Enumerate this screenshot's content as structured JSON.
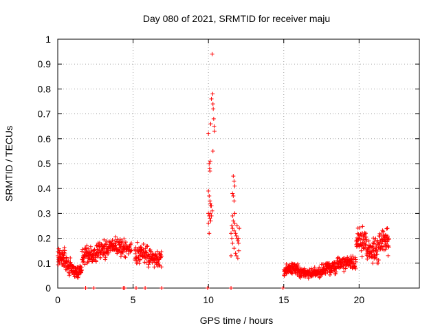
{
  "chart_data": {
    "type": "scatter",
    "title": "Day 080 of 2021, SRMTID for receiver maju",
    "xlabel": "GPS time / hours",
    "ylabel": "SRMTID / TECUs",
    "xlim": [
      0,
      24
    ],
    "ylim": [
      0,
      1
    ],
    "x_ticks": [
      0,
      5,
      10,
      15,
      20
    ],
    "x_tick_labels": [
      "0",
      "5",
      "10",
      "15",
      "20"
    ],
    "y_ticks": [
      0,
      0.1,
      0.2,
      0.3,
      0.4,
      0.5,
      0.6,
      0.7,
      0.8,
      0.9,
      1
    ],
    "y_tick_labels": [
      "0",
      "0.1",
      "0.2",
      "0.3",
      "0.4",
      "0.5",
      "0.6",
      "0.7",
      "0.8",
      "0.9",
      "1"
    ],
    "grid": true,
    "marker": "+",
    "series_color": "#ff0000",
    "seed": 80,
    "segments": [
      {
        "x0": 0.0,
        "x1": 0.5,
        "base": 0.12,
        "spread": 0.035,
        "n": 45
      },
      {
        "x0": 0.5,
        "x1": 1.0,
        "base": 0.09,
        "spread": 0.03,
        "n": 40
      },
      {
        "x0": 1.0,
        "x1": 1.6,
        "base": 0.07,
        "spread": 0.025,
        "n": 45
      },
      {
        "x0": 1.6,
        "x1": 2.4,
        "base": 0.13,
        "spread": 0.035,
        "n": 55
      },
      {
        "x0": 2.4,
        "x1": 3.4,
        "base": 0.15,
        "spread": 0.04,
        "n": 70
      },
      {
        "x0": 3.4,
        "x1": 4.4,
        "base": 0.17,
        "spread": 0.035,
        "n": 70
      },
      {
        "x0": 4.4,
        "x1": 4.9,
        "base": 0.16,
        "spread": 0.03,
        "n": 30
      },
      {
        "x0": 5.1,
        "x1": 6.0,
        "base": 0.13,
        "spread": 0.035,
        "n": 60
      },
      {
        "x0": 6.0,
        "x1": 6.9,
        "base": 0.12,
        "spread": 0.035,
        "n": 60
      },
      {
        "x0": 15.0,
        "x1": 16.0,
        "base": 0.075,
        "spread": 0.02,
        "n": 80
      },
      {
        "x0": 16.0,
        "x1": 17.5,
        "base": 0.06,
        "spread": 0.018,
        "n": 110
      },
      {
        "x0": 17.5,
        "x1": 18.5,
        "base": 0.08,
        "spread": 0.025,
        "n": 80
      },
      {
        "x0": 18.5,
        "x1": 19.8,
        "base": 0.1,
        "spread": 0.025,
        "n": 90
      },
      {
        "x0": 19.8,
        "x1": 20.5,
        "base": 0.19,
        "spread": 0.045,
        "n": 55
      },
      {
        "x0": 20.5,
        "x1": 21.3,
        "base": 0.15,
        "spread": 0.045,
        "n": 60
      },
      {
        "x0": 21.3,
        "x1": 22.0,
        "base": 0.19,
        "spread": 0.04,
        "n": 55
      }
    ],
    "points": [
      {
        "x": 10.0,
        "y": 0.62
      },
      {
        "x": 10.05,
        "y": 0.5
      },
      {
        "x": 10.08,
        "y": 0.48
      },
      {
        "x": 10.1,
        "y": 0.47
      },
      {
        "x": 10.12,
        "y": 0.51
      },
      {
        "x": 10.15,
        "y": 0.66
      },
      {
        "x": 10.2,
        "y": 0.76
      },
      {
        "x": 10.25,
        "y": 0.94
      },
      {
        "x": 10.28,
        "y": 0.78
      },
      {
        "x": 10.3,
        "y": 0.74
      },
      {
        "x": 10.32,
        "y": 0.72
      },
      {
        "x": 10.35,
        "y": 0.68
      },
      {
        "x": 10.38,
        "y": 0.65
      },
      {
        "x": 10.4,
        "y": 0.63
      },
      {
        "x": 10.3,
        "y": 0.55
      },
      {
        "x": 10.0,
        "y": 0.39
      },
      {
        "x": 10.05,
        "y": 0.37
      },
      {
        "x": 10.1,
        "y": 0.35
      },
      {
        "x": 10.12,
        "y": 0.34
      },
      {
        "x": 10.15,
        "y": 0.33
      },
      {
        "x": 10.2,
        "y": 0.33
      },
      {
        "x": 10.25,
        "y": 0.31
      },
      {
        "x": 10.0,
        "y": 0.3
      },
      {
        "x": 10.05,
        "y": 0.29
      },
      {
        "x": 10.1,
        "y": 0.28
      },
      {
        "x": 10.15,
        "y": 0.27
      },
      {
        "x": 10.2,
        "y": 0.29
      },
      {
        "x": 10.0,
        "y": 0.26
      },
      {
        "x": 10.05,
        "y": 0.22
      },
      {
        "x": 10.12,
        "y": 0.3
      },
      {
        "x": 11.65,
        "y": 0.45
      },
      {
        "x": 11.7,
        "y": 0.43
      },
      {
        "x": 11.75,
        "y": 0.41
      },
      {
        "x": 11.6,
        "y": 0.38
      },
      {
        "x": 11.65,
        "y": 0.37
      },
      {
        "x": 11.7,
        "y": 0.35
      },
      {
        "x": 11.75,
        "y": 0.3
      },
      {
        "x": 11.6,
        "y": 0.29
      },
      {
        "x": 11.65,
        "y": 0.27
      },
      {
        "x": 11.55,
        "y": 0.25
      },
      {
        "x": 11.6,
        "y": 0.24
      },
      {
        "x": 11.7,
        "y": 0.23
      },
      {
        "x": 11.8,
        "y": 0.22
      },
      {
        "x": 11.85,
        "y": 0.21
      },
      {
        "x": 11.9,
        "y": 0.2
      },
      {
        "x": 11.95,
        "y": 0.19
      },
      {
        "x": 12.0,
        "y": 0.18
      },
      {
        "x": 12.05,
        "y": 0.24
      },
      {
        "x": 11.5,
        "y": 0.22
      },
      {
        "x": 11.55,
        "y": 0.2
      },
      {
        "x": 11.6,
        "y": 0.18
      },
      {
        "x": 11.7,
        "y": 0.16
      },
      {
        "x": 11.8,
        "y": 0.14
      },
      {
        "x": 11.85,
        "y": 0.13
      },
      {
        "x": 11.5,
        "y": 0.13
      },
      {
        "x": 11.95,
        "y": 0.12
      },
      {
        "x": 12.0,
        "y": 0.2
      },
      {
        "x": 11.75,
        "y": 0.26
      },
      {
        "x": 11.9,
        "y": 0.25
      },
      {
        "x": 12.02,
        "y": 0.15
      }
    ],
    "zero_points": [
      1.85,
      2.4,
      4.35,
      4.45,
      5.2,
      5.8,
      6.9,
      9.95,
      11.5,
      14.95
    ]
  }
}
